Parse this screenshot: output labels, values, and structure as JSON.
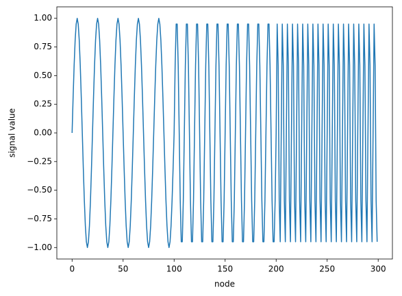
{
  "chart_data": {
    "type": "line",
    "x_label": "node",
    "y_label": "signal value",
    "color": "#1f77b4",
    "xlim": [
      -14.95,
      313.95
    ],
    "ylim": [
      -1.1,
      1.1
    ],
    "xticks": [
      0,
      50,
      100,
      150,
      200,
      250,
      300
    ],
    "yticks": [
      {
        "value": -1,
        "label": "−1.00"
      },
      {
        "value": -0.75,
        "label": "−0.75"
      },
      {
        "value": -0.5,
        "label": "−0.50"
      },
      {
        "value": -0.25,
        "label": "−0.25"
      },
      {
        "value": 0,
        "label": "0.00"
      },
      {
        "value": 0.25,
        "label": "0.25"
      },
      {
        "value": 0.5,
        "label": "0.50"
      },
      {
        "value": 0.75,
        "label": "0.75"
      },
      {
        "value": 1,
        "label": "1.00"
      }
    ],
    "x": [
      0,
      1,
      2,
      3,
      4,
      5,
      6,
      7,
      8,
      9,
      10,
      11,
      12,
      13,
      14,
      15,
      16,
      17,
      18,
      19,
      20,
      21,
      22,
      23,
      24,
      25,
      26,
      27,
      28,
      29,
      30,
      31,
      32,
      33,
      34,
      35,
      36,
      37,
      38,
      39,
      40,
      41,
      42,
      43,
      44,
      45,
      46,
      47,
      48,
      49,
      50,
      51,
      52,
      53,
      54,
      55,
      56,
      57,
      58,
      59,
      60,
      61,
      62,
      63,
      64,
      65,
      66,
      67,
      68,
      69,
      70,
      71,
      72,
      73,
      74,
      75,
      76,
      77,
      78,
      79,
      80,
      81,
      82,
      83,
      84,
      85,
      86,
      87,
      88,
      89,
      90,
      91,
      92,
      93,
      94,
      95,
      96,
      97,
      98,
      99,
      100,
      101,
      102,
      103,
      104,
      105,
      106,
      107,
      108,
      109,
      110,
      111,
      112,
      113,
      114,
      115,
      116,
      117,
      118,
      119,
      120,
      121,
      122,
      123,
      124,
      125,
      126,
      127,
      128,
      129,
      130,
      131,
      132,
      133,
      134,
      135,
      136,
      137,
      138,
      139,
      140,
      141,
      142,
      143,
      144,
      145,
      146,
      147,
      148,
      149,
      150,
      151,
      152,
      153,
      154,
      155,
      156,
      157,
      158,
      159,
      160,
      161,
      162,
      163,
      164,
      165,
      166,
      167,
      168,
      169,
      170,
      171,
      172,
      173,
      174,
      175,
      176,
      177,
      178,
      179,
      180,
      181,
      182,
      183,
      184,
      185,
      186,
      187,
      188,
      189,
      190,
      191,
      192,
      193,
      194,
      195,
      196,
      197,
      198,
      199,
      200,
      201,
      202,
      203,
      204,
      205,
      206,
      207,
      208,
      209,
      210,
      211,
      212,
      213,
      214,
      215,
      216,
      217,
      218,
      219,
      220,
      221,
      222,
      223,
      224,
      225,
      226,
      227,
      228,
      229,
      230,
      231,
      232,
      233,
      234,
      235,
      236,
      237,
      238,
      239,
      240,
      241,
      242,
      243,
      244,
      245,
      246,
      247,
      248,
      249,
      250,
      251,
      252,
      253,
      254,
      255,
      256,
      257,
      258,
      259,
      260,
      261,
      262,
      263,
      264,
      265,
      266,
      267,
      268,
      269,
      270,
      271,
      272,
      273,
      274,
      275,
      276,
      277,
      278,
      279,
      280,
      281,
      282,
      283,
      284,
      285,
      286,
      287,
      288,
      289,
      290,
      291,
      292,
      293,
      294,
      295,
      296,
      297,
      298,
      299
    ],
    "values": [
      0,
      0.31,
      0.59,
      0.81,
      0.95,
      1,
      0.95,
      0.81,
      0.59,
      0.31,
      0,
      -0.31,
      -0.59,
      -0.81,
      -0.95,
      -1,
      -0.95,
      -0.81,
      -0.59,
      -0.31,
      0,
      0.31,
      0.59,
      0.81,
      0.95,
      1,
      0.95,
      0.81,
      0.59,
      0.31,
      0,
      -0.31,
      -0.59,
      -0.81,
      -0.95,
      -1,
      -0.95,
      -0.81,
      -0.59,
      -0.31,
      0,
      0.31,
      0.59,
      0.81,
      0.95,
      1,
      0.95,
      0.81,
      0.59,
      0.31,
      0,
      -0.31,
      -0.59,
      -0.81,
      -0.95,
      -1,
      -0.95,
      -0.81,
      -0.59,
      -0.31,
      0,
      0.31,
      0.59,
      0.81,
      0.95,
      1,
      0.95,
      0.81,
      0.59,
      0.31,
      0,
      -0.31,
      -0.59,
      -0.81,
      -0.95,
      -1,
      -0.95,
      -0.81,
      -0.59,
      -0.31,
      0,
      0.31,
      0.59,
      0.81,
      0.95,
      1,
      0.95,
      0.81,
      0.59,
      0.31,
      0,
      -0.31,
      -0.59,
      -0.81,
      -0.95,
      -1,
      -0.95,
      -0.81,
      -0.59,
      -0.31,
      0,
      0.59,
      0.95,
      0.95,
      0.59,
      0,
      -0.59,
      -0.95,
      -0.95,
      -0.59,
      0,
      0.59,
      0.95,
      0.95,
      0.59,
      0,
      -0.59,
      -0.95,
      -0.95,
      -0.59,
      0,
      0.59,
      0.95,
      0.95,
      0.59,
      0,
      -0.59,
      -0.95,
      -0.95,
      -0.59,
      0,
      0.59,
      0.95,
      0.95,
      0.59,
      0,
      -0.59,
      -0.95,
      -0.95,
      -0.59,
      0,
      0.59,
      0.95,
      0.95,
      0.59,
      0,
      -0.59,
      -0.95,
      -0.95,
      -0.59,
      0,
      0.59,
      0.95,
      0.95,
      0.59,
      0,
      -0.59,
      -0.95,
      -0.95,
      -0.59,
      0,
      0.59,
      0.95,
      0.95,
      0.59,
      0,
      -0.59,
      -0.95,
      -0.95,
      -0.59,
      0,
      0.59,
      0.95,
      0.95,
      0.59,
      0,
      -0.59,
      -0.95,
      -0.95,
      -0.59,
      0,
      0.59,
      0.95,
      0.95,
      0.59,
      0,
      -0.59,
      -0.95,
      -0.95,
      -0.59,
      0,
      0.59,
      0.95,
      0.95,
      0.59,
      0,
      -0.59,
      -0.95,
      -0.95,
      -0.59,
      0,
      0.95,
      0.59,
      -0.59,
      -0.95,
      0,
      0.95,
      0.59,
      -0.59,
      -0.95,
      0,
      0.95,
      0.59,
      -0.59,
      -0.95,
      0,
      0.95,
      0.59,
      -0.59,
      -0.95,
      0,
      0.95,
      0.59,
      -0.59,
      -0.95,
      0,
      0.95,
      0.59,
      -0.59,
      -0.95,
      0,
      0.95,
      0.59,
      -0.59,
      -0.95,
      0,
      0.95,
      0.59,
      -0.59,
      -0.95,
      0,
      0.95,
      0.59,
      -0.59,
      -0.95,
      0,
      0.95,
      0.59,
      -0.59,
      -0.95,
      0,
      0.95,
      0.59,
      -0.59,
      -0.95,
      0,
      0.95,
      0.59,
      -0.59,
      -0.95,
      0,
      0.95,
      0.59,
      -0.59,
      -0.95,
      0,
      0.95,
      0.59,
      -0.59,
      -0.95,
      0,
      0.95,
      0.59,
      -0.59,
      -0.95,
      0,
      0.95,
      0.59,
      -0.59,
      -0.95,
      0,
      0.95,
      0.59,
      -0.59,
      -0.95,
      0,
      0.95,
      0.59,
      -0.59,
      -0.95,
      0,
      0.95,
      0.59,
      -0.59,
      -0.95,
      0,
      0.95,
      0.59,
      -0.59,
      -0.95
    ]
  }
}
